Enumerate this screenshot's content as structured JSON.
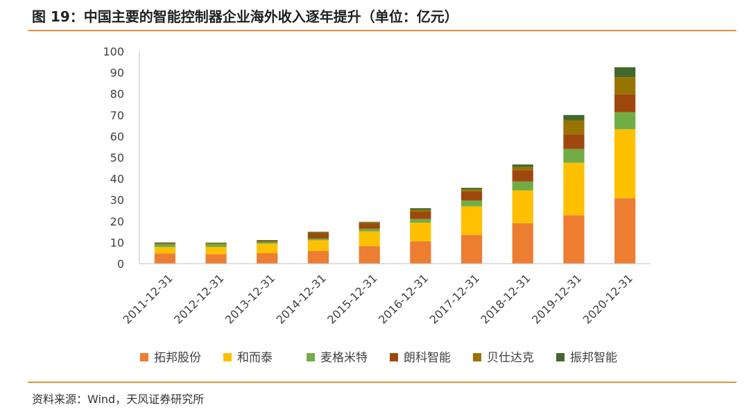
{
  "header": {
    "title": "图 19：中国主要的智能控制器企业海外收入逐年提升（单位：亿元）"
  },
  "footer": {
    "source": "资料来源：Wind，天风证券研究所"
  },
  "chart_data": {
    "type": "bar",
    "stacked": true,
    "categories": [
      "2011-12-31",
      "2012-12-31",
      "2013-12-31",
      "2014-12-31",
      "2015-12-31",
      "2016-12-31",
      "2017-12-31",
      "2018-12-31",
      "2019-12-31",
      "2020-12-31"
    ],
    "ylim": [
      0,
      100
    ],
    "yticks": [
      0,
      10,
      20,
      30,
      40,
      50,
      60,
      70,
      80,
      90,
      100
    ],
    "grid": false,
    "legend": "bottom",
    "series": [
      {
        "name": "拓邦股份",
        "color": "#ed7d31",
        "values": [
          4.8,
          4.5,
          4.9,
          6.0,
          8.2,
          10.5,
          13.5,
          19.0,
          22.8,
          30.8
        ]
      },
      {
        "name": "和而泰",
        "color": "#ffc000",
        "values": [
          3.0,
          3.3,
          4.5,
          5.0,
          7.0,
          8.8,
          13.5,
          15.5,
          24.7,
          32.5
        ]
      },
      {
        "name": "麦格米特",
        "color": "#70ad47",
        "values": [
          1.3,
          1.3,
          0.8,
          0.8,
          1.2,
          1.7,
          2.7,
          4.2,
          6.5,
          8.0
        ]
      },
      {
        "name": "朗科智能",
        "color": "#9e480e",
        "values": [
          0.4,
          0.3,
          0.4,
          2.6,
          2.7,
          3.5,
          4.3,
          5.3,
          7.0,
          8.5
        ]
      },
      {
        "name": "贝仕达克",
        "color": "#997300",
        "values": [
          0.2,
          0.2,
          0.2,
          0.3,
          0.4,
          0.8,
          0.9,
          1.5,
          6.5,
          8.0
        ]
      },
      {
        "name": "振邦智能",
        "color": "#43682b",
        "values": [
          0.3,
          0.3,
          0.3,
          0.3,
          0.2,
          0.8,
          0.8,
          1.2,
          2.5,
          4.7
        ]
      }
    ]
  }
}
